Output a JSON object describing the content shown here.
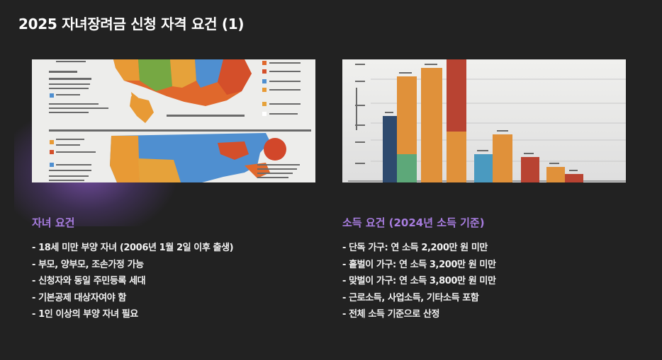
{
  "slide": {
    "title": "2025 자녀장려금 신청 자격 요건 (1)"
  },
  "images": {
    "map": {
      "icon": "us-map-infographic-image"
    },
    "chart": {
      "icon": "bar-chart-image"
    }
  },
  "child_section": {
    "heading": "자녀 요건",
    "items": [
      "- 18세 미만 부양 자녀 (2006년 1월 2일 이후 출생)",
      "- 부모, 양부모, 조손가정 가능",
      "- 신청자와 동일 주민등록 세대",
      "- 기본공제 대상자여야 함",
      "- 1인 이상의 부양 자녀 필요"
    ]
  },
  "income_section": {
    "heading": "소득 요건 (2024년 소득 기준)",
    "items": [
      "- 단독 가구: 연 소득 2,200만 원 미만",
      "- 홑벌이 가구: 연 소득 3,200만 원 미만",
      "- 맞벌이 가구: 연 소득 3,800만 원 미만",
      "- 근로소득, 사업소득, 기타소득 포함",
      "- 전체 소득 기준으로 산정"
    ]
  },
  "colors": {
    "background": "#222222",
    "accent": "#a87de0",
    "text": "#f2f2f2"
  }
}
